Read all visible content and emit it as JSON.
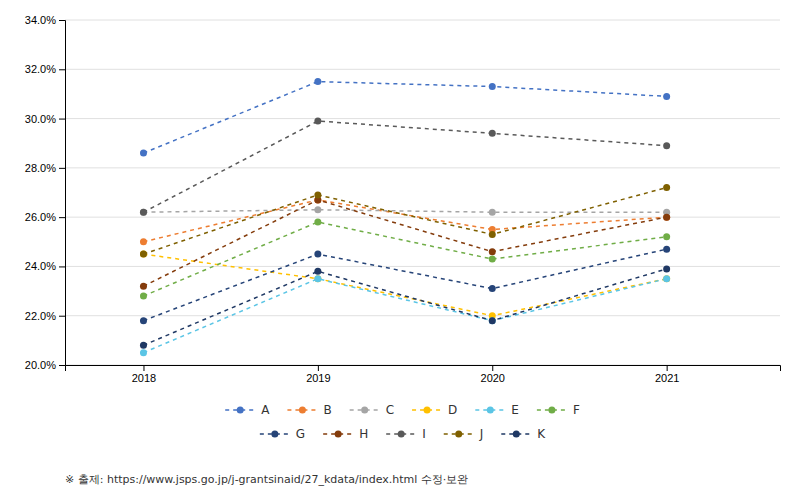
{
  "chart_data": {
    "type": "line",
    "x": [
      2018,
      2019,
      2020,
      2021
    ],
    "xlim": [
      2017.55,
      2021.65
    ],
    "xticks": [
      2018,
      2019,
      2020,
      2021
    ],
    "ylim": [
      20.0,
      34.0
    ],
    "yticks": [
      {
        "value": 20.0,
        "label": "20.0%"
      },
      {
        "value": 22.0,
        "label": "22.0%"
      },
      {
        "value": 24.0,
        "label": "24.0%"
      },
      {
        "value": 26.0,
        "label": "26.0%"
      },
      {
        "value": 28.0,
        "label": "28.0%"
      },
      {
        "value": 30.0,
        "label": "30.0%"
      },
      {
        "value": 32.0,
        "label": "32.0%"
      },
      {
        "value": 34.0,
        "label": "34.0%"
      }
    ],
    "grid": true,
    "legend": "bottom",
    "marker": "circle",
    "line_style": "dashed",
    "series": [
      {
        "name": "A",
        "color": "#4472C4",
        "values": [
          28.6,
          31.5,
          31.3,
          30.9
        ]
      },
      {
        "name": "B",
        "color": "#ED7D31",
        "values": [
          25.0,
          26.7,
          25.5,
          26.0
        ]
      },
      {
        "name": "C",
        "color": "#A5A5A5",
        "values": [
          26.2,
          26.3,
          26.2,
          26.2
        ]
      },
      {
        "name": "D",
        "color": "#FFC000",
        "values": [
          24.5,
          23.5,
          22.0,
          23.5
        ]
      },
      {
        "name": "E",
        "color": "#5BC5E5",
        "values": [
          20.5,
          23.5,
          21.8,
          23.5
        ]
      },
      {
        "name": "F",
        "color": "#70AD47",
        "values": [
          22.8,
          25.8,
          24.3,
          25.2
        ]
      },
      {
        "name": "G",
        "color": "#264478",
        "values": [
          21.8,
          24.5,
          23.1,
          24.7
        ]
      },
      {
        "name": "H",
        "color": "#843C0C",
        "values": [
          23.2,
          26.7,
          24.6,
          26.0
        ]
      },
      {
        "name": "I",
        "color": "#595959",
        "values": [
          26.2,
          29.9,
          29.4,
          28.9
        ]
      },
      {
        "name": "J",
        "color": "#7F6000",
        "values": [
          24.5,
          26.9,
          25.3,
          27.2
        ]
      },
      {
        "name": "K",
        "color": "#1F3864",
        "values": [
          20.8,
          23.8,
          21.8,
          23.9
        ]
      }
    ],
    "annotations": [
      "※ 출제:  https://www.jsps.go.jp/j-grantsinaid/27_kdata/index.html  수정·보완"
    ]
  }
}
